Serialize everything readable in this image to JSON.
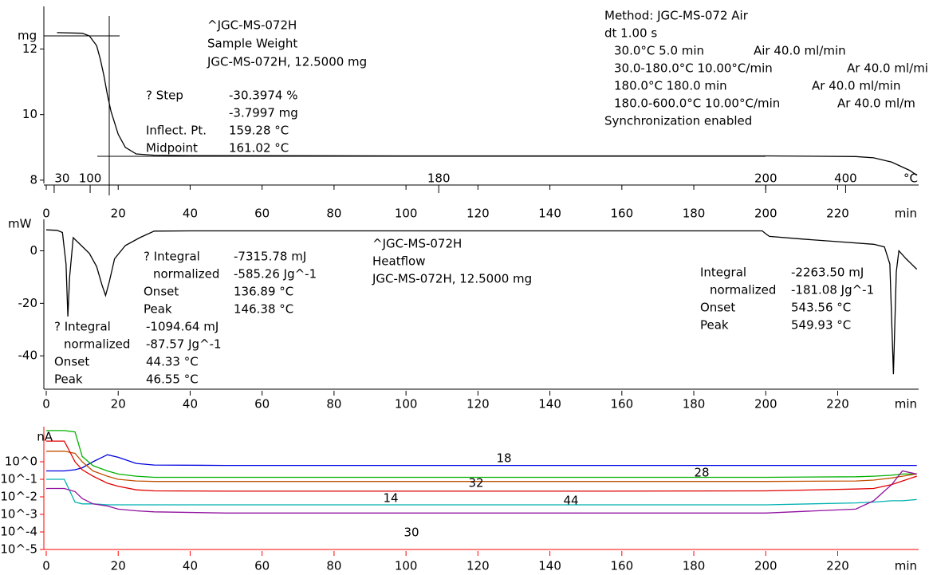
{
  "chart_data": [
    {
      "type": "line",
      "ylabel": "mg",
      "axis_color": "#000000",
      "line_color": "#000000",
      "xlim": [
        0,
        242.5
      ],
      "xticks": [
        0,
        20,
        40,
        60,
        80,
        100,
        120,
        140,
        160,
        180,
        200,
        220
      ],
      "xlabel": "min",
      "ylim": [
        7.9,
        13.3
      ],
      "yticks": [
        8,
        10,
        12
      ],
      "temp_axis": {
        "x": [
          2.2,
          12.2,
          109.1,
          200,
          222.2
        ],
        "labels": [
          "30",
          "100",
          "180",
          "200",
          "400"
        ],
        "unit": "°C"
      },
      "x": [
        3,
        10,
        12,
        14,
        15,
        16,
        17,
        18,
        20,
        22,
        25,
        30,
        40,
        100,
        200,
        225,
        230,
        235,
        240,
        242
      ],
      "values": [
        12.5,
        12.48,
        12.4,
        12.1,
        11.7,
        11.2,
        10.6,
        10.1,
        9.4,
        9.0,
        8.8,
        8.76,
        8.75,
        8.74,
        8.74,
        8.72,
        8.68,
        8.55,
        8.3,
        8.15
      ],
      "annotations": {
        "sample": [
          "^JGC-MS-072H",
          "Sample Weight",
          "JGC-MS-072H, 12.5000 mg"
        ],
        "step": [
          {
            "label": "? Step",
            "value": "-30.3974 %"
          },
          {
            "value": "-3.7997 mg"
          },
          {
            "label": "Inflect. Pt.",
            "value": "159.28 °C"
          },
          {
            "label": "Midpoint",
            "value": "161.02 °C"
          }
        ],
        "method": {
          "lines": [
            "Method: JGC-MS-072 Air",
            "dt 1.00 s"
          ],
          "segments": [
            {
              "program": "30.0°C 5.0 min",
              "gas": "Air 40.0 ml/min"
            },
            {
              "program": "30.0-180.0°C 10.00°C/min",
              "gas": "Ar 40.0 ml/mi"
            },
            {
              "program": "180.0°C 180.0 min",
              "gas": "Ar 40.0 ml/min"
            },
            {
              "program": "180.0-600.0°C 10.00°C/min",
              "gas": "Ar 40.0 ml/m"
            }
          ],
          "sync": "Synchronization enabled"
        }
      }
    },
    {
      "type": "line",
      "ylabel": "mW",
      "axis_color": "#000000",
      "line_color": "#000000",
      "xlim": [
        0,
        242.5
      ],
      "xticks": [
        0,
        20,
        40,
        60,
        80,
        100,
        120,
        140,
        160,
        180,
        200,
        220
      ],
      "xlabel": "min",
      "ylim": [
        -52.7,
        12
      ],
      "yticks": [
        0,
        -20,
        -40
      ],
      "x": [
        0,
        3,
        4.5,
        5.5,
        6,
        6.5,
        7.5,
        9,
        12,
        14,
        15.5,
        16.5,
        17.5,
        19,
        22,
        26,
        30,
        40,
        100,
        199,
        200,
        201,
        210,
        220,
        230,
        233,
        234.5,
        235.5,
        236.3,
        237,
        239,
        242
      ],
      "values": [
        8,
        7.8,
        7,
        -5,
        -25,
        -10,
        5,
        3,
        -1,
        -6,
        -13,
        -17,
        -12,
        -3,
        2,
        5,
        7.5,
        7.6,
        7.6,
        7.6,
        6.5,
        5.5,
        4.5,
        3.5,
        2.5,
        1.5,
        -5,
        -47,
        -8,
        0,
        -3,
        -7
      ],
      "annotations": {
        "heatflow": [
          "^JGC-MS-072H",
          "Heatflow",
          "JGC-MS-072H, 12.5000 mg"
        ],
        "peak_2": [
          {
            "label": "? Integral",
            "value": "-7315.78 mJ"
          },
          {
            "label": "normalized",
            "value": "-585.26 Jg^-1"
          },
          {
            "label": "Onset",
            "value": "136.89 °C"
          },
          {
            "label": "Peak",
            "value": "146.38 °C"
          }
        ],
        "peak_1": [
          {
            "label": "? Integral",
            "value": "-1094.64 mJ"
          },
          {
            "label": "normalized",
            "value": "-87.57 Jg^-1"
          },
          {
            "label": "Onset",
            "value": "44.33 °C"
          },
          {
            "label": "Peak",
            "value": "46.55 °C"
          }
        ],
        "peak_3": [
          {
            "label": "Integral",
            "value": "-2263.50 mJ"
          },
          {
            "label": "normalized",
            "value": "-181.08 Jg^-1"
          },
          {
            "label": "Onset",
            "value": "543.56 °C"
          },
          {
            "label": "Peak",
            "value": "549.93 °C"
          }
        ]
      }
    },
    {
      "type": "line",
      "ylabel": "nA",
      "axis_color": "#ff0000",
      "log_scale": true,
      "xlim": [
        0,
        242.5
      ],
      "xticks": [
        0,
        20,
        40,
        60,
        80,
        100,
        120,
        140,
        160,
        180,
        200,
        220
      ],
      "xlabel": "min",
      "ylim": [
        1e-05,
        100
      ],
      "yticks": [
        {
          "value": 1,
          "label": "10^0"
        },
        {
          "value": 0.1,
          "label": "10^-1"
        },
        {
          "value": 0.01,
          "label": "10^-2"
        },
        {
          "value": 0.001,
          "label": "10^-3"
        },
        {
          "value": 0.0001,
          "label": "10^-4"
        },
        {
          "value": 1e-05,
          "label": "10^-5"
        }
      ],
      "x": [
        0,
        5,
        8,
        10,
        13,
        17,
        20,
        25,
        30,
        50,
        100,
        150,
        200,
        225,
        230,
        235,
        238,
        242
      ],
      "series": [
        {
          "name": "18",
          "color": "#0000e0",
          "values": [
            0.3,
            0.3,
            0.35,
            0.45,
            1.0,
            2.5,
            1.8,
            0.8,
            0.65,
            0.62,
            0.62,
            0.62,
            0.62,
            0.62,
            0.62,
            0.62,
            0.62,
            0.62
          ]
        },
        {
          "name": "28",
          "color": "#00b000",
          "values": [
            60,
            60,
            50,
            2,
            0.6,
            0.3,
            0.2,
            0.15,
            0.13,
            0.13,
            0.13,
            0.13,
            0.13,
            0.14,
            0.15,
            0.17,
            0.2,
            0.2
          ]
        },
        {
          "name": "32",
          "color": "#c05000",
          "values": [
            4,
            4,
            3,
            1,
            0.3,
            0.15,
            0.1,
            0.08,
            0.075,
            0.075,
            0.075,
            0.075,
            0.075,
            0.08,
            0.09,
            0.12,
            0.15,
            0.2
          ]
        },
        {
          "name": "14",
          "color": "#e00000",
          "values": [
            15,
            15,
            1,
            0.35,
            0.15,
            0.06,
            0.04,
            0.025,
            0.022,
            0.021,
            0.021,
            0.021,
            0.022,
            0.028,
            0.03,
            0.05,
            0.08,
            0.15
          ]
        },
        {
          "name": "44",
          "color": "#00b0b0",
          "values": [
            0.1,
            0.1,
            0.005,
            0.004,
            0.004,
            0.0035,
            0.0035,
            0.0035,
            0.0035,
            0.0035,
            0.0035,
            0.0035,
            0.0035,
            0.0045,
            0.005,
            0.006,
            0.006,
            0.007
          ]
        },
        {
          "name": "30",
          "color": "#9010a0",
          "values": [
            0.03,
            0.03,
            0.02,
            0.008,
            0.004,
            0.003,
            0.002,
            0.0016,
            0.0014,
            0.0012,
            0.0012,
            0.0012,
            0.0012,
            0.002,
            0.006,
            0.05,
            0.3,
            0.2
          ]
        }
      ]
    }
  ]
}
